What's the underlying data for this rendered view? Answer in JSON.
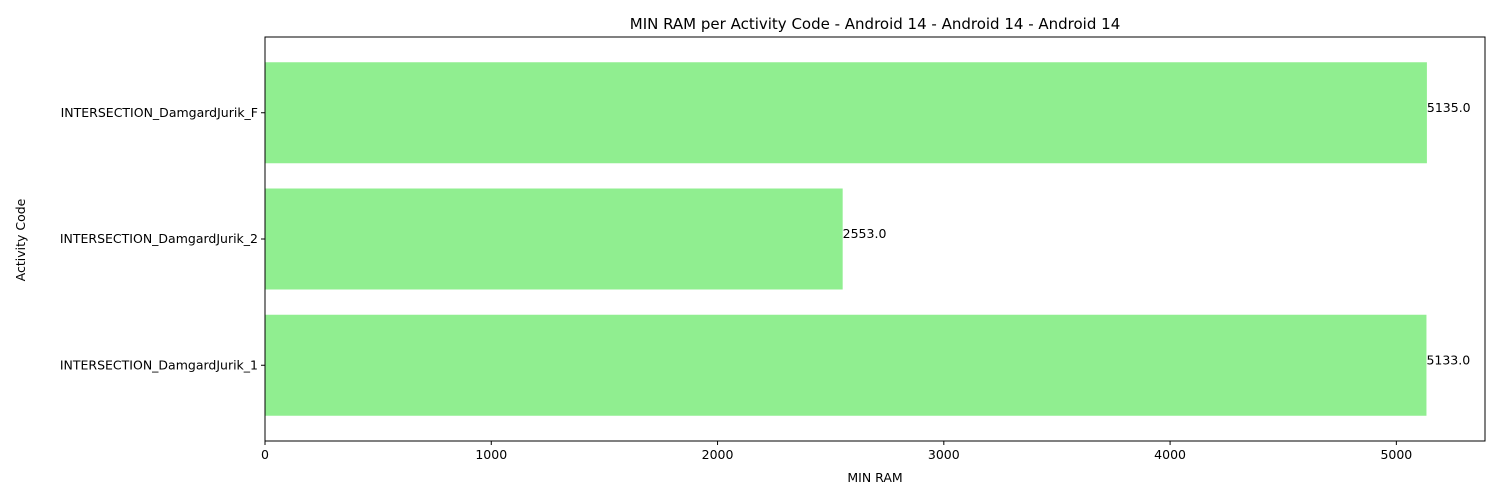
{
  "chart_data": {
    "type": "bar",
    "orientation": "horizontal",
    "title": "MIN RAM per Activity Code - Android 14 - Android 14 - Android 14",
    "xlabel": "MIN RAM",
    "ylabel": "Activity Code",
    "categories": [
      "INTERSECTION_DamgardJurik_F",
      "INTERSECTION_DamgardJurik_2",
      "INTERSECTION_DamgardJurik_1"
    ],
    "values": [
      5135.0,
      2553.0,
      5133.0
    ],
    "data_labels": [
      "5135.0",
      "2553.0",
      "5133.0"
    ],
    "xlim": [
      0,
      5391.75
    ],
    "xticks": [
      0,
      1000,
      2000,
      3000,
      4000,
      5000
    ],
    "bar_color": "#90ee90",
    "grid": false,
    "legend": "none"
  }
}
